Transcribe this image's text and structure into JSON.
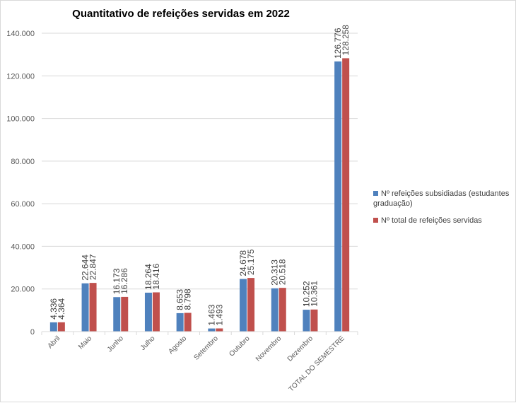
{
  "chart_data": {
    "type": "bar",
    "title": "Quantitativo de refeições servidas em 2022",
    "categories": [
      "Abril",
      "Maio",
      "Junho",
      "Julho",
      "Agosto",
      "Setembro",
      "Outubro",
      "Novembro",
      "Dezembro",
      "TOTAL DO SEMESTRE"
    ],
    "series": [
      {
        "name": "Nº refeições subsidiadas (estudantes graduação)",
        "color": "#4F81BD",
        "values": [
          4336,
          22644,
          16173,
          18264,
          8653,
          1463,
          24678,
          20313,
          10252,
          126776
        ],
        "labels": [
          "4.336",
          "22.644",
          "16.173",
          "18.264",
          "8.653",
          "1.463",
          "24.678",
          "20.313",
          "10.252",
          "126.776"
        ]
      },
      {
        "name": "Nº total de refeições servidas",
        "color": "#C0504D",
        "values": [
          4364,
          22847,
          16286,
          18416,
          8798,
          1493,
          25175,
          20518,
          10361,
          128258
        ],
        "labels": [
          "4.364",
          "22.847",
          "16.286",
          "18.416",
          "8.798",
          "1.493",
          "25.175",
          "20.518",
          "10.361",
          "128.258"
        ]
      }
    ],
    "ylim": [
      0,
      140000
    ],
    "yticks": [
      "0",
      "20.000",
      "40.000",
      "60.000",
      "80.000",
      "100.000",
      "120.000",
      "140.000"
    ],
    "grid": true,
    "legend": "right"
  }
}
